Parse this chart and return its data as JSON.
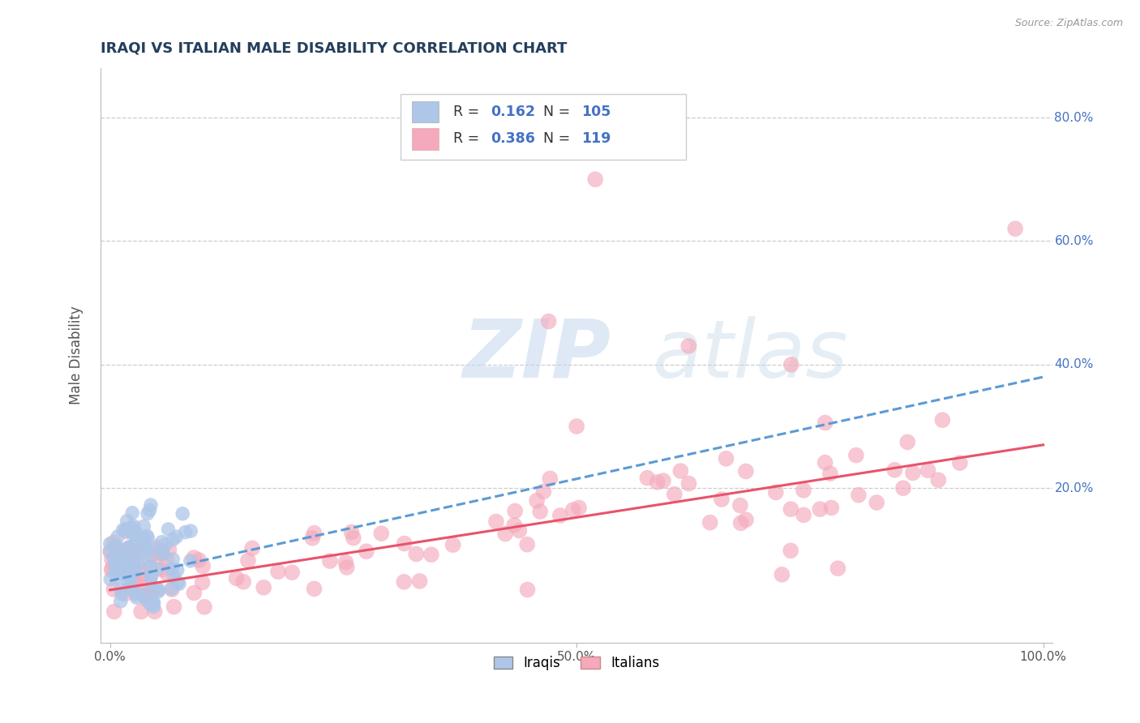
{
  "title": "IRAQI VS ITALIAN MALE DISABILITY CORRELATION CHART",
  "source": "Source: ZipAtlas.com",
  "ylabel": "Male Disability",
  "watermark": "ZIPatlas",
  "xlim": [
    -0.01,
    1.01
  ],
  "ylim": [
    -0.05,
    0.88
  ],
  "xticks": [
    0.0,
    0.5,
    1.0
  ],
  "xtick_labels": [
    "0.0%",
    "50.0%",
    "100.0%"
  ],
  "ytick_positions": [
    0.2,
    0.4,
    0.6,
    0.8
  ],
  "ytick_labels": [
    "20.0%",
    "40.0%",
    "60.0%",
    "80.0%"
  ],
  "grid_color": "#cccccc",
  "background_color": "#ffffff",
  "iraqi_color": "#aec6e8",
  "italian_color": "#f4aabc",
  "iraqi_R": 0.162,
  "iraqi_N": 105,
  "italian_R": 0.386,
  "italian_N": 119,
  "iraqi_trend_color": "#5b9bd5",
  "italian_trend_color": "#e8536a",
  "legend_label_iraqi": "Iraqis",
  "legend_label_italian": "Italians",
  "title_color": "#243f5c",
  "axis_label_color": "#555555",
  "legend_r_color": "#333333",
  "legend_n_color": "#4472c4",
  "ytick_color": "#4472c4"
}
